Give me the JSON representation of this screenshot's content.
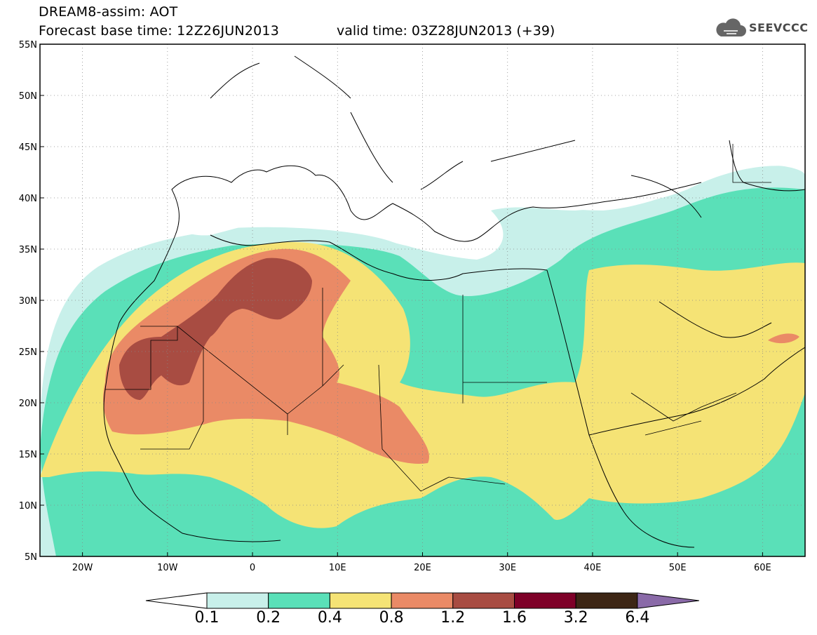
{
  "title": {
    "line1": "DREAM8-assim: AOT",
    "line2": "Forecast base time: 12Z26JUN2013",
    "valid": "valid time: 03Z28JUN2013 (+39)"
  },
  "logo": {
    "text": "SEEVCCC",
    "icon": "cloud-icon"
  },
  "axes": {
    "lon_labels": [
      "20W",
      "10W",
      "0",
      "10E",
      "20E",
      "30E",
      "40E",
      "50E",
      "60E"
    ],
    "lon_values": [
      -20,
      -10,
      0,
      10,
      20,
      30,
      40,
      50,
      60
    ],
    "lat_labels": [
      "55N",
      "50N",
      "45N",
      "40N",
      "35N",
      "30N",
      "25N",
      "20N",
      "15N",
      "10N",
      "5N"
    ],
    "lat_values": [
      55,
      50,
      45,
      40,
      35,
      30,
      25,
      20,
      15,
      10,
      5
    ],
    "lon_range": [
      -25,
      65
    ],
    "lat_range": [
      5,
      55
    ],
    "grid": "dotted"
  },
  "colorbar": {
    "labels": [
      "0.1",
      "0.2",
      "0.4",
      "0.8",
      "1.2",
      "1.6",
      "3.2",
      "6.4"
    ],
    "colors": [
      "#ffffff",
      "#c8f0ea",
      "#5ae0b8",
      "#f5e375",
      "#ea8a66",
      "#a84c42",
      "#7e0028",
      "#3d2615",
      "#8a6aa8"
    ]
  },
  "fill_colors": {
    "land": "#ffffff",
    "c1": "#c8f0ea",
    "c2": "#5ae0b8",
    "c3": "#f5e375",
    "c4": "#ea8a66",
    "c5": "#a84c42"
  }
}
